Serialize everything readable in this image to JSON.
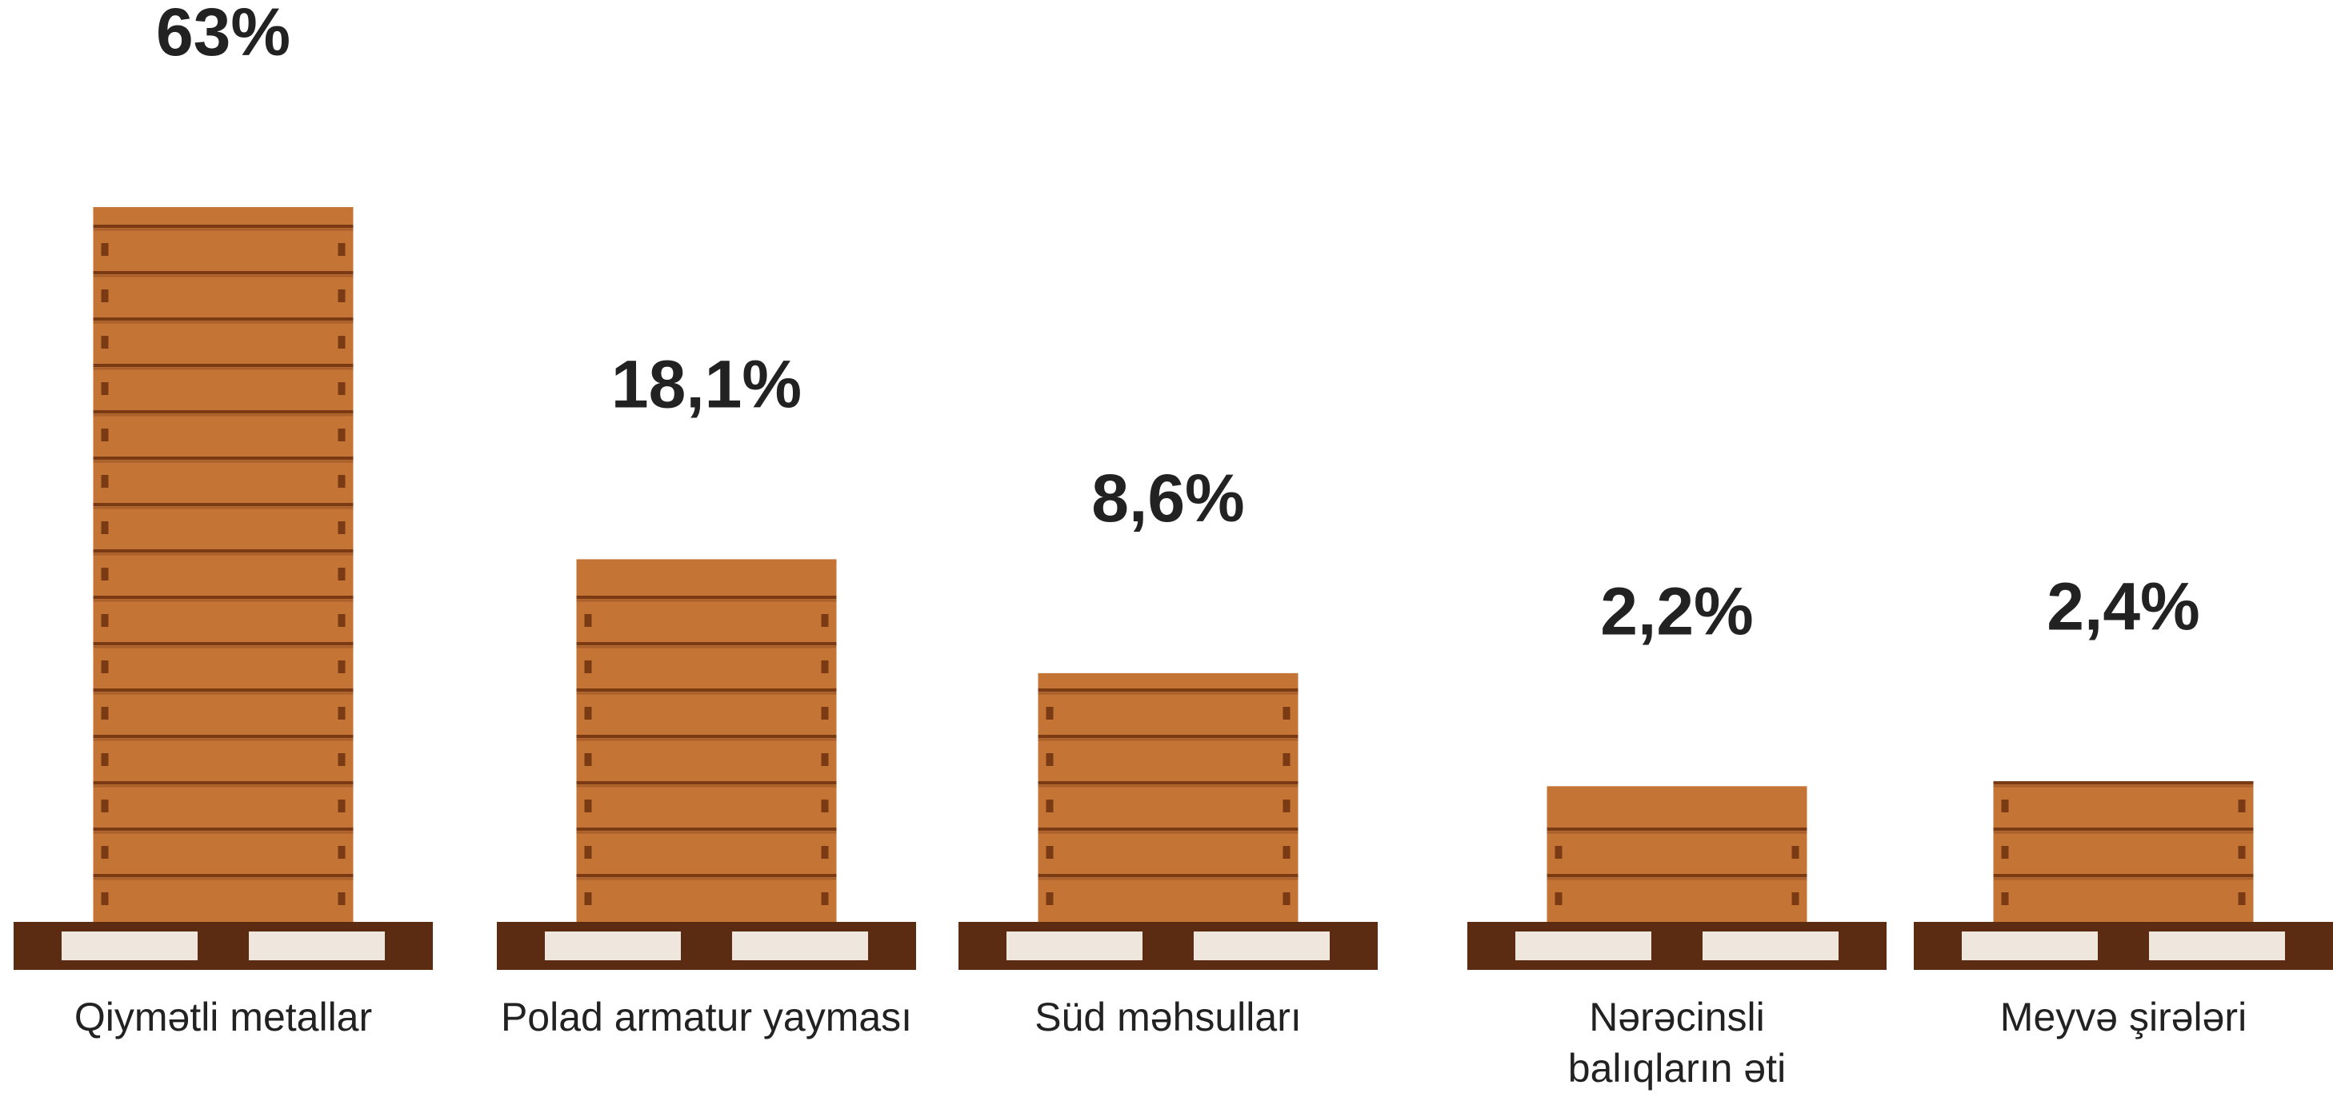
{
  "chart_data": {
    "type": "crate-bar",
    "categories": [
      "Qiymətli metallar",
      "Polad armatur yayması",
      "Süd məhsulları",
      "Nərəcinsli balıqların əti",
      "Meyvə şirələri"
    ],
    "values": [
      63,
      18.1,
      8.6,
      2.2,
      2.4
    ],
    "value_labels": [
      "63%",
      "18,1%",
      "8,6%",
      "2,2%",
      "2,4%"
    ],
    "color": "#c47434"
  }
}
